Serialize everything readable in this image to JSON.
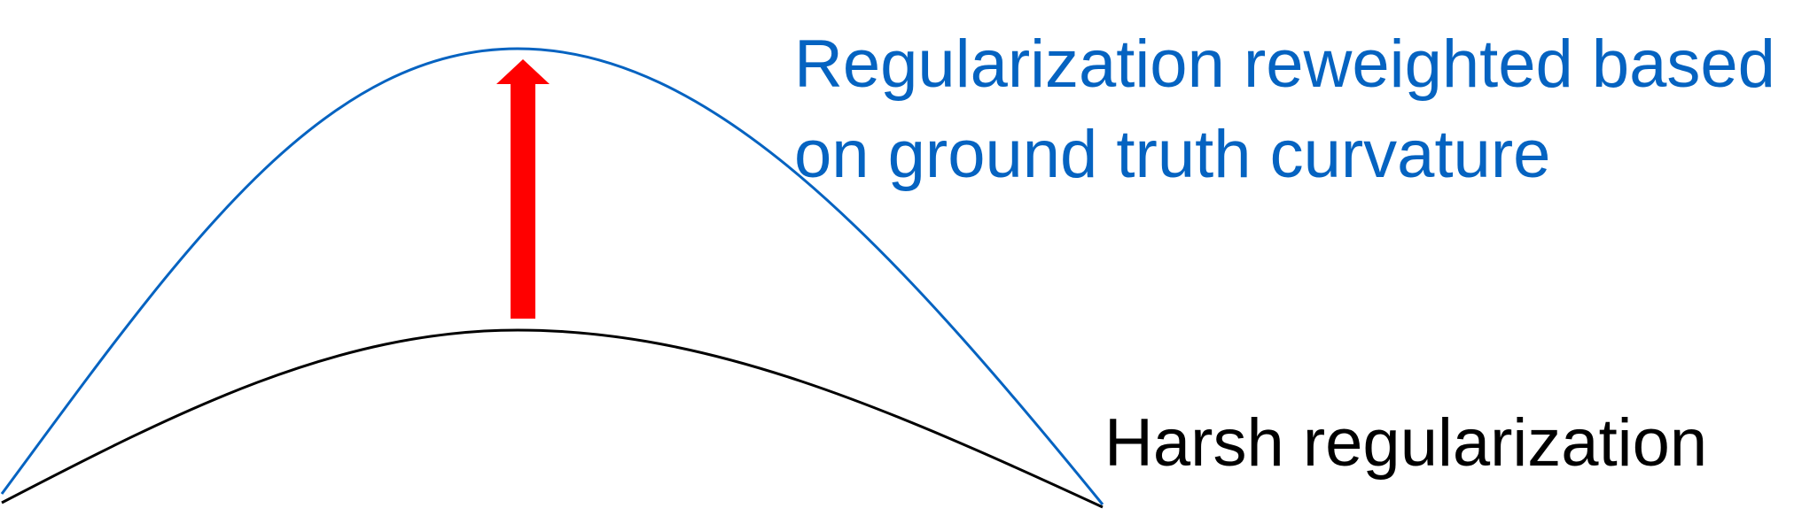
{
  "labels": {
    "reweighted_line1": "Regularization reweighted based",
    "reweighted_line2": "on ground truth curvature",
    "harsh": "Harsh regularization"
  },
  "curves": {
    "reweighted": {
      "color": "#0563c1"
    },
    "harsh": {
      "color": "#000000"
    }
  },
  "arrow": {
    "color": "#ff0000",
    "direction": "up"
  }
}
